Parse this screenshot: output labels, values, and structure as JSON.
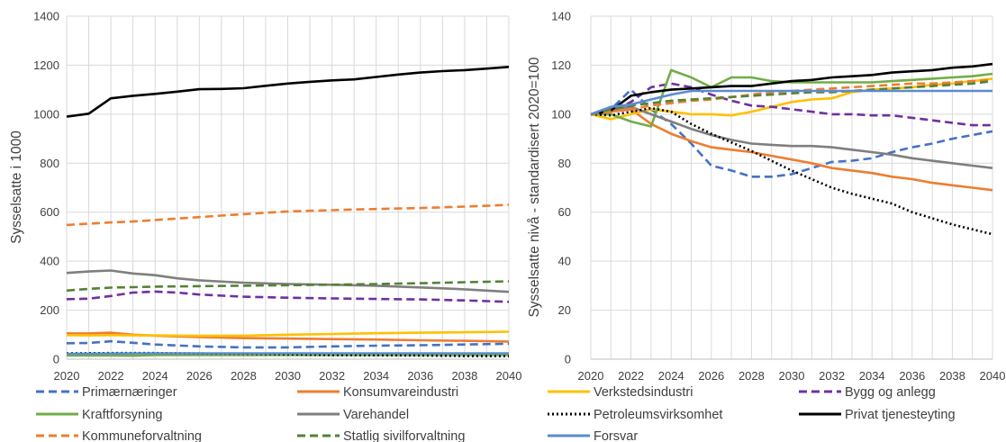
{
  "chart_data": [
    {
      "type": "line",
      "ylabel": "Sysselsatte i 1000",
      "xlim": [
        2020,
        2040
      ],
      "ylim": [
        0,
        1400
      ],
      "xticks": [
        2020,
        2022,
        2024,
        2026,
        2028,
        2030,
        2032,
        2034,
        2036,
        2038,
        2040
      ],
      "yticks": [
        0,
        200,
        400,
        600,
        800,
        1000,
        1200,
        1400
      ],
      "grid": true,
      "series": [
        {
          "name": "Primærnæringer",
          "x": [
            2020,
            2021,
            2022,
            2023,
            2024,
            2026,
            2028,
            2030,
            2032,
            2034,
            2036,
            2038,
            2040
          ],
          "values": [
            65,
            66,
            73,
            67,
            60,
            52,
            48,
            48,
            52,
            55,
            57,
            60,
            63
          ]
        },
        {
          "name": "Konsumvareindustri",
          "x": [
            2020,
            2021,
            2022,
            2023,
            2024,
            2026,
            2028,
            2030,
            2032,
            2034,
            2036,
            2038,
            2040
          ],
          "values": [
            105,
            105,
            108,
            100,
            96,
            90,
            86,
            84,
            82,
            80,
            77,
            75,
            72
          ]
        },
        {
          "name": "Verkstedsindustri",
          "x": [
            2020,
            2021,
            2022,
            2023,
            2024,
            2026,
            2028,
            2030,
            2032,
            2034,
            2036,
            2038,
            2040
          ],
          "values": [
            98,
            97,
            98,
            97,
            97,
            95,
            96,
            100,
            103,
            106,
            108,
            110,
            112
          ]
        },
        {
          "name": "Bygg og anlegg",
          "x": [
            2020,
            2021,
            2022,
            2023,
            2024,
            2025,
            2026,
            2028,
            2030,
            2032,
            2034,
            2036,
            2038,
            2040
          ],
          "values": [
            245,
            247,
            258,
            272,
            276,
            272,
            264,
            255,
            251,
            248,
            246,
            244,
            240,
            234
          ]
        },
        {
          "name": "Kraftforsyning",
          "x": [
            2020,
            2022,
            2023,
            2024,
            2026,
            2028,
            2030,
            2032,
            2034,
            2036,
            2038,
            2040
          ],
          "values": [
            15,
            15,
            14,
            17,
            17,
            17,
            17,
            17,
            17,
            17,
            17,
            17
          ]
        },
        {
          "name": "Varehandel",
          "x": [
            2020,
            2021,
            2022,
            2023,
            2024,
            2025,
            2026,
            2028,
            2030,
            2032,
            2034,
            2036,
            2038,
            2040
          ],
          "values": [
            352,
            358,
            362,
            350,
            343,
            330,
            322,
            312,
            307,
            304,
            300,
            293,
            285,
            275
          ]
        },
        {
          "name": "Petroleumsvirksomhet",
          "x": [
            2020,
            2022,
            2024,
            2026,
            2028,
            2030,
            2032,
            2034,
            2036,
            2038,
            2040
          ],
          "values": [
            24,
            25,
            25,
            23,
            22,
            20,
            17,
            16,
            15,
            13,
            12
          ]
        },
        {
          "name": "Privat tjenesteyting",
          "x": [
            2020,
            2021,
            2022,
            2023,
            2024,
            2025,
            2026,
            2027,
            2028,
            2029,
            2030,
            2031,
            2032,
            2033,
            2034,
            2035,
            2036,
            2037,
            2038,
            2039,
            2040
          ],
          "values": [
            990,
            1002,
            1065,
            1075,
            1083,
            1092,
            1102,
            1103,
            1106,
            1116,
            1125,
            1132,
            1138,
            1142,
            1152,
            1162,
            1170,
            1176,
            1180,
            1186,
            1193
          ]
        },
        {
          "name": "Kommuneforvaltning",
          "x": [
            2020,
            2021,
            2022,
            2023,
            2024,
            2025,
            2026,
            2027,
            2028,
            2029,
            2030,
            2031,
            2032,
            2033,
            2034,
            2035,
            2036,
            2037,
            2038,
            2039,
            2040
          ],
          "values": [
            548,
            553,
            558,
            562,
            568,
            574,
            580,
            586,
            592,
            598,
            603,
            606,
            608,
            611,
            613,
            615,
            617,
            620,
            623,
            626,
            630
          ]
        },
        {
          "name": "Statlig sivilforvaltning",
          "x": [
            2020,
            2021,
            2022,
            2023,
            2024,
            2026,
            2028,
            2030,
            2032,
            2034,
            2036,
            2038,
            2040
          ],
          "values": [
            280,
            287,
            292,
            294,
            296,
            298,
            300,
            302,
            304,
            307,
            310,
            314,
            318
          ]
        },
        {
          "name": "Forsvar",
          "x": [
            2020,
            2022,
            2024,
            2026,
            2028,
            2030,
            2032,
            2034,
            2036,
            2038,
            2040
          ],
          "values": [
            22,
            23,
            24,
            24,
            24,
            24,
            24,
            24,
            24,
            24,
            24
          ]
        }
      ]
    },
    {
      "type": "line",
      "ylabel": "Sysselsatte nivå - standardisert 2020=100",
      "xlim": [
        2020,
        2040
      ],
      "ylim": [
        0,
        140
      ],
      "xticks": [
        2020,
        2022,
        2024,
        2026,
        2028,
        2030,
        2032,
        2034,
        2036,
        2038,
        2040
      ],
      "yticks": [
        0,
        20,
        40,
        60,
        80,
        100,
        120,
        140
      ],
      "grid": true,
      "series": [
        {
          "name": "Primærnæringer",
          "x": [
            2020,
            2021,
            2022,
            2023,
            2024,
            2025,
            2026,
            2027,
            2028,
            2029,
            2030,
            2031,
            2032,
            2033,
            2034,
            2035,
            2036,
            2037,
            2038,
            2039,
            2040
          ],
          "values": [
            100,
            102,
            110,
            102,
            96,
            88,
            79,
            77,
            74.5,
            74.5,
            75.5,
            78,
            80.5,
            81,
            82,
            84.5,
            86.5,
            88,
            90,
            91.5,
            93
          ]
        },
        {
          "name": "Konsumvareindustri",
          "x": [
            2020,
            2021,
            2022,
            2023,
            2024,
            2025,
            2026,
            2027,
            2028,
            2029,
            2030,
            2031,
            2032,
            2033,
            2034,
            2035,
            2036,
            2037,
            2038,
            2039,
            2040
          ],
          "values": [
            100,
            101,
            102,
            96,
            92,
            89,
            86.5,
            85.5,
            84.5,
            83,
            81.5,
            80,
            78,
            77,
            76,
            74.5,
            73.5,
            72,
            71,
            70,
            69
          ]
        },
        {
          "name": "Verkstedsindustri",
          "x": [
            2020,
            2021,
            2022,
            2023,
            2024,
            2025,
            2026,
            2027,
            2028,
            2029,
            2030,
            2031,
            2032,
            2033,
            2034,
            2035,
            2036,
            2037,
            2038,
            2039,
            2040
          ],
          "values": [
            100,
            98,
            100,
            102,
            101,
            100,
            100,
            99.5,
            101,
            103,
            105,
            106,
            106.5,
            109,
            110,
            110.5,
            111,
            112,
            112.5,
            113.5,
            114.5
          ]
        },
        {
          "name": "Bygg og anlegg",
          "x": [
            2020,
            2021,
            2022,
            2023,
            2024,
            2025,
            2026,
            2027,
            2028,
            2029,
            2030,
            2031,
            2032,
            2033,
            2034,
            2035,
            2036,
            2037,
            2038,
            2039,
            2040
          ],
          "values": [
            100,
            101,
            105,
            111,
            112.5,
            111,
            108,
            105.5,
            103.5,
            103,
            102,
            101,
            100,
            100,
            99.5,
            99.5,
            98.5,
            97.5,
            96.5,
            95.5,
            95.5
          ]
        },
        {
          "name": "Kraftforsyning",
          "x": [
            2020,
            2021,
            2022,
            2023,
            2024,
            2025,
            2026,
            2027,
            2028,
            2029,
            2030,
            2031,
            2032,
            2033,
            2034,
            2035,
            2036,
            2037,
            2038,
            2039,
            2040
          ],
          "values": [
            100,
            100,
            97,
            95,
            118,
            115,
            111,
            115,
            115,
            113.5,
            113,
            113,
            113,
            113,
            113,
            113.5,
            114,
            114.5,
            115,
            115.5,
            116.5
          ]
        },
        {
          "name": "Varehandel",
          "x": [
            2020,
            2021,
            2022,
            2023,
            2024,
            2025,
            2026,
            2027,
            2028,
            2029,
            2030,
            2031,
            2032,
            2033,
            2034,
            2035,
            2036,
            2037,
            2038,
            2039,
            2040
          ],
          "values": [
            100,
            102,
            103,
            100,
            97,
            94,
            91.5,
            89.5,
            88,
            87.5,
            87,
            87,
            86.5,
            85.5,
            84.5,
            83.5,
            82,
            81,
            80,
            79,
            78
          ]
        },
        {
          "name": "Petroleumsvirksomhet",
          "x": [
            2020,
            2021,
            2022,
            2023,
            2024,
            2025,
            2026,
            2027,
            2028,
            2029,
            2030,
            2031,
            2032,
            2033,
            2034,
            2035,
            2036,
            2037,
            2038,
            2039,
            2040
          ],
          "values": [
            100,
            99.5,
            101,
            102.5,
            101,
            96,
            92,
            88.5,
            85,
            81,
            77,
            73.5,
            70,
            67.5,
            65.5,
            63.5,
            60,
            57.5,
            55,
            53,
            51
          ]
        },
        {
          "name": "Privat tjenesteyting",
          "x": [
            2020,
            2021,
            2022,
            2023,
            2024,
            2025,
            2026,
            2027,
            2028,
            2029,
            2030,
            2031,
            2032,
            2033,
            2034,
            2035,
            2036,
            2037,
            2038,
            2039,
            2040
          ],
          "values": [
            100,
            101.5,
            107.5,
            109,
            110,
            110.5,
            111,
            111.5,
            111.5,
            112.5,
            113.5,
            114,
            115,
            115.5,
            116,
            117,
            117.5,
            118,
            119,
            119.5,
            120.5
          ]
        },
        {
          "name": "Kommuneforvaltning",
          "x": [
            2020,
            2021,
            2022,
            2023,
            2024,
            2025,
            2026,
            2027,
            2028,
            2029,
            2030,
            2031,
            2032,
            2033,
            2034,
            2035,
            2036,
            2037,
            2038,
            2039,
            2040
          ],
          "values": [
            100,
            101,
            102,
            103.5,
            104.5,
            105.5,
            106,
            107,
            108,
            109,
            109.5,
            110,
            110.5,
            111,
            111.5,
            112,
            112.5,
            112.5,
            113,
            113.5,
            114
          ]
        },
        {
          "name": "Statlig sivilforvaltning",
          "x": [
            2020,
            2021,
            2022,
            2023,
            2024,
            2025,
            2026,
            2027,
            2028,
            2029,
            2030,
            2031,
            2032,
            2033,
            2034,
            2035,
            2036,
            2037,
            2038,
            2039,
            2040
          ],
          "values": [
            100,
            102,
            103.5,
            104.5,
            105.5,
            106,
            106.5,
            107,
            107.5,
            108,
            108.5,
            109,
            109,
            109.5,
            110,
            110.5,
            111,
            111.5,
            112,
            112.5,
            113.5
          ]
        },
        {
          "name": "Forsvar",
          "x": [
            2020,
            2021,
            2022,
            2023,
            2024,
            2025,
            2026,
            2027,
            2028,
            2029,
            2030,
            2031,
            2032,
            2033,
            2034,
            2035,
            2036,
            2037,
            2038,
            2039,
            2040
          ],
          "values": [
            100,
            103,
            104,
            106,
            108,
            109.5,
            109.5,
            109.5,
            109.5,
            109.5,
            109.5,
            109.5,
            109.5,
            109.5,
            109.5,
            109.5,
            109.5,
            109.5,
            109.5,
            109.5,
            109.5
          ]
        }
      ]
    }
  ],
  "legend": {
    "placement": "bottom",
    "entries": [
      {
        "name": "Primærnæringer",
        "color": "#4472C4",
        "dash": "dash"
      },
      {
        "name": "Konsumvareindustri",
        "color": "#ED7D31",
        "dash": "solid"
      },
      {
        "name": "Verkstedsindustri",
        "color": "#FFC000",
        "dash": "solid"
      },
      {
        "name": "Bygg og anlegg",
        "color": "#7030A0",
        "dash": "dash"
      },
      {
        "name": "Kraftforsyning",
        "color": "#70AD47",
        "dash": "solid"
      },
      {
        "name": "Varehandel",
        "color": "#7F7F7F",
        "dash": "solid"
      },
      {
        "name": "Petroleumsvirksomhet",
        "color": "#000000",
        "dash": "dot"
      },
      {
        "name": "Privat tjenesteyting",
        "color": "#000000",
        "dash": "solid"
      },
      {
        "name": "Kommuneforvaltning",
        "color": "#ED7D31",
        "dash": "dash"
      },
      {
        "name": "Statlig sivilforvaltning",
        "color": "#548235",
        "dash": "dash"
      },
      {
        "name": "Forsvar",
        "color": "#5B8BD0",
        "dash": "solid"
      }
    ]
  }
}
